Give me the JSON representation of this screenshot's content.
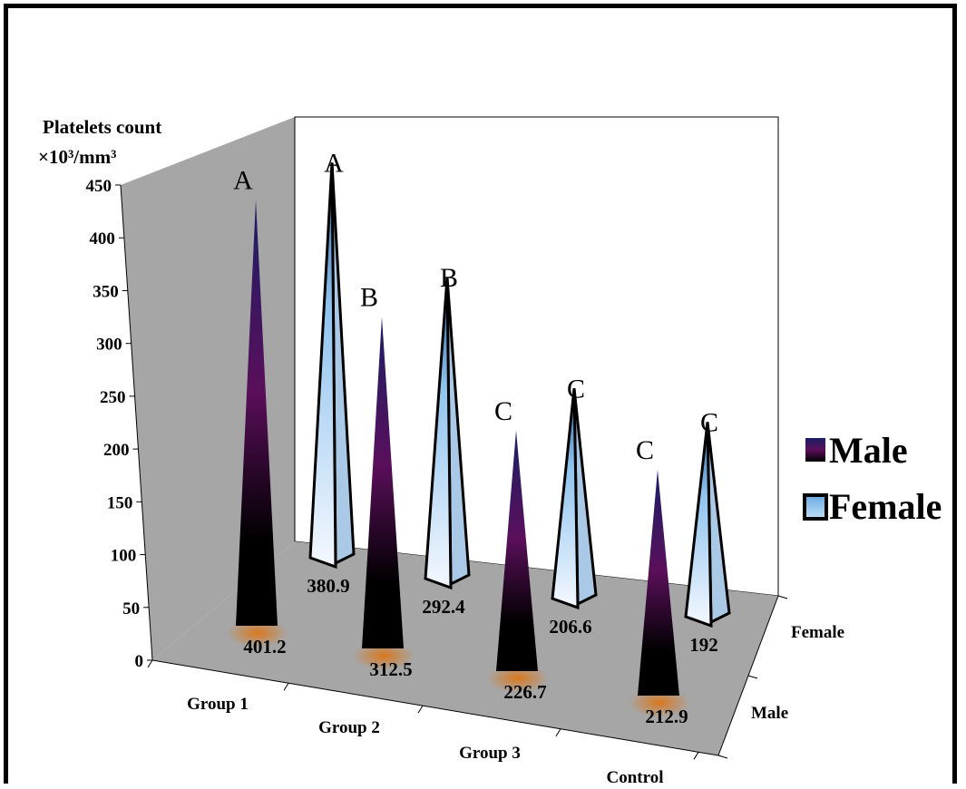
{
  "chart_data": {
    "type": "bar",
    "variant": "3d-pyramid",
    "ylabel_line1": "Platelets count",
    "ylabel_line2": "×10³/mm³",
    "ylim": [
      0,
      450
    ],
    "yticks": [
      "0",
      "50",
      "100",
      "150",
      "200",
      "250",
      "300",
      "350",
      "400",
      "450"
    ],
    "categories": [
      "Group 1",
      "Group 2",
      "Group 3",
      "Control"
    ],
    "depth_categories": [
      "Male",
      "Female"
    ],
    "series": [
      {
        "name": "Male",
        "values": [
          401.2,
          312.5,
          226.7,
          212.9
        ],
        "value_labels": [
          "401.2",
          "312.5",
          "226.7",
          "212.9"
        ],
        "sig_letters": [
          "A",
          "B",
          "C",
          "C"
        ],
        "color_top": "#1b1f66",
        "color_mid": "#5a0f5a",
        "color_bottom": "#000000",
        "base_color": "#d9781e"
      },
      {
        "name": "Female",
        "values": [
          380.9,
          292.4,
          206.6,
          192
        ],
        "value_labels": [
          "380.9",
          "292.4",
          "206.6",
          "192"
        ],
        "sig_letters": [
          "A",
          "B",
          "C",
          "C"
        ],
        "color_top": "#2a5d9a",
        "color_mid": "#8ec3ee",
        "color_bottom": "#f4f8ff"
      }
    ],
    "legend_position": "right",
    "grid": false
  }
}
